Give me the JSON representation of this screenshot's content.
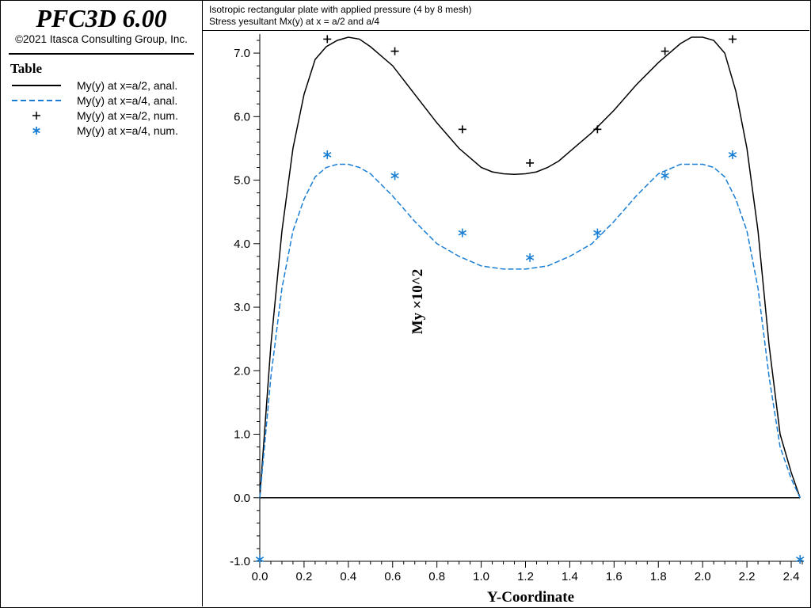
{
  "app": {
    "title": "PFC3D 6.00",
    "copyright": "©2021 Itasca Consulting Group, Inc."
  },
  "legend": {
    "title": "Table",
    "items": [
      {
        "label": "My(y) at x=a/2, anal.",
        "style": "solid-line",
        "color": "#000000"
      },
      {
        "label": "My(y) at x=a/4, anal.",
        "style": "dashed-line",
        "color": "#1a7fd4"
      },
      {
        "label": "My(y) at x=a/2, num.",
        "style": "plus-marker",
        "color": "#000000"
      },
      {
        "label": "My(y) at x=a/4, num.",
        "style": "asterisk-marker",
        "color": "#1a7fd4"
      }
    ]
  },
  "header": {
    "line1": "Isotropic rectangular plate with applied pressure (4 by 8 mesh)",
    "line2": "Stress yesultant Mx(y) at x = a/2 and a/4"
  },
  "chart_data": {
    "type": "line",
    "xlabel": "Y-Coordinate",
    "ylabel": "My ×10^2",
    "xlim": [
      0.0,
      2.45
    ],
    "ylim": [
      -1.0,
      7.3
    ],
    "xticks": [
      "0.0",
      "0.2",
      "0.4",
      "0.6",
      "0.8",
      "1.0",
      "1.2",
      "1.4",
      "1.6",
      "1.8",
      "2.0",
      "2.2",
      "2.4"
    ],
    "yticks": [
      "-1.0",
      "0.0",
      "1.0",
      "2.0",
      "3.0",
      "4.0",
      "5.0",
      "6.0",
      "7.0"
    ],
    "series": [
      {
        "name": "My(y) at x=a/2, anal.",
        "kind": "line",
        "dash": false,
        "color": "#000000",
        "x": [
          0.0,
          0.05,
          0.1,
          0.15,
          0.2,
          0.25,
          0.3,
          0.35,
          0.4,
          0.45,
          0.5,
          0.6,
          0.7,
          0.8,
          0.9,
          1.0,
          1.05,
          1.1,
          1.15,
          1.2,
          1.25,
          1.3,
          1.35,
          1.4,
          1.5,
          1.6,
          1.7,
          1.8,
          1.9,
          1.95,
          2.0,
          2.05,
          2.1,
          2.15,
          2.2,
          2.25,
          2.3,
          2.35,
          2.4,
          2.44
        ],
        "y": [
          0.0,
          2.4,
          4.2,
          5.5,
          6.35,
          6.9,
          7.1,
          7.2,
          7.25,
          7.22,
          7.1,
          6.8,
          6.35,
          5.9,
          5.5,
          5.2,
          5.13,
          5.1,
          5.09,
          5.1,
          5.13,
          5.2,
          5.3,
          5.45,
          5.75,
          6.1,
          6.5,
          6.85,
          7.15,
          7.25,
          7.25,
          7.2,
          7.0,
          6.4,
          5.5,
          4.2,
          2.4,
          1.0,
          0.4,
          0.0
        ]
      },
      {
        "name": "My(y) at x=a/4, anal.",
        "kind": "line",
        "dash": true,
        "color": "#1a7fd4",
        "x": [
          0.0,
          0.05,
          0.1,
          0.15,
          0.2,
          0.25,
          0.3,
          0.35,
          0.4,
          0.45,
          0.5,
          0.6,
          0.7,
          0.8,
          0.9,
          1.0,
          1.1,
          1.2,
          1.3,
          1.4,
          1.5,
          1.6,
          1.7,
          1.8,
          1.9,
          2.0,
          2.05,
          2.1,
          2.15,
          2.2,
          2.25,
          2.3,
          2.35,
          2.4,
          2.44
        ],
        "y": [
          0.0,
          1.9,
          3.3,
          4.2,
          4.7,
          5.05,
          5.2,
          5.25,
          5.25,
          5.2,
          5.1,
          4.75,
          4.35,
          4.0,
          3.8,
          3.65,
          3.6,
          3.6,
          3.65,
          3.8,
          4.0,
          4.35,
          4.75,
          5.1,
          5.25,
          5.25,
          5.2,
          5.05,
          4.7,
          4.2,
          3.3,
          1.9,
          0.8,
          0.3,
          0.0
        ]
      },
      {
        "name": "My(y) at x=a/2, num.",
        "kind": "marker",
        "marker": "plus",
        "color": "#000000",
        "x": [
          0.305,
          0.61,
          0.915,
          1.22,
          1.525,
          1.83,
          2.135
        ],
        "y": [
          7.22,
          7.03,
          5.8,
          5.27,
          5.8,
          7.03,
          7.22
        ]
      },
      {
        "name": "My(y) at x=a/4, num.",
        "kind": "marker",
        "marker": "asterisk",
        "color": "#1a7fd4",
        "x": [
          0.0,
          0.305,
          0.61,
          0.915,
          1.22,
          1.525,
          1.83,
          2.135,
          2.44
        ],
        "y": [
          -0.97,
          5.4,
          5.07,
          4.17,
          3.78,
          4.17,
          5.07,
          5.4,
          -0.97
        ]
      }
    ],
    "zero_line": true
  }
}
